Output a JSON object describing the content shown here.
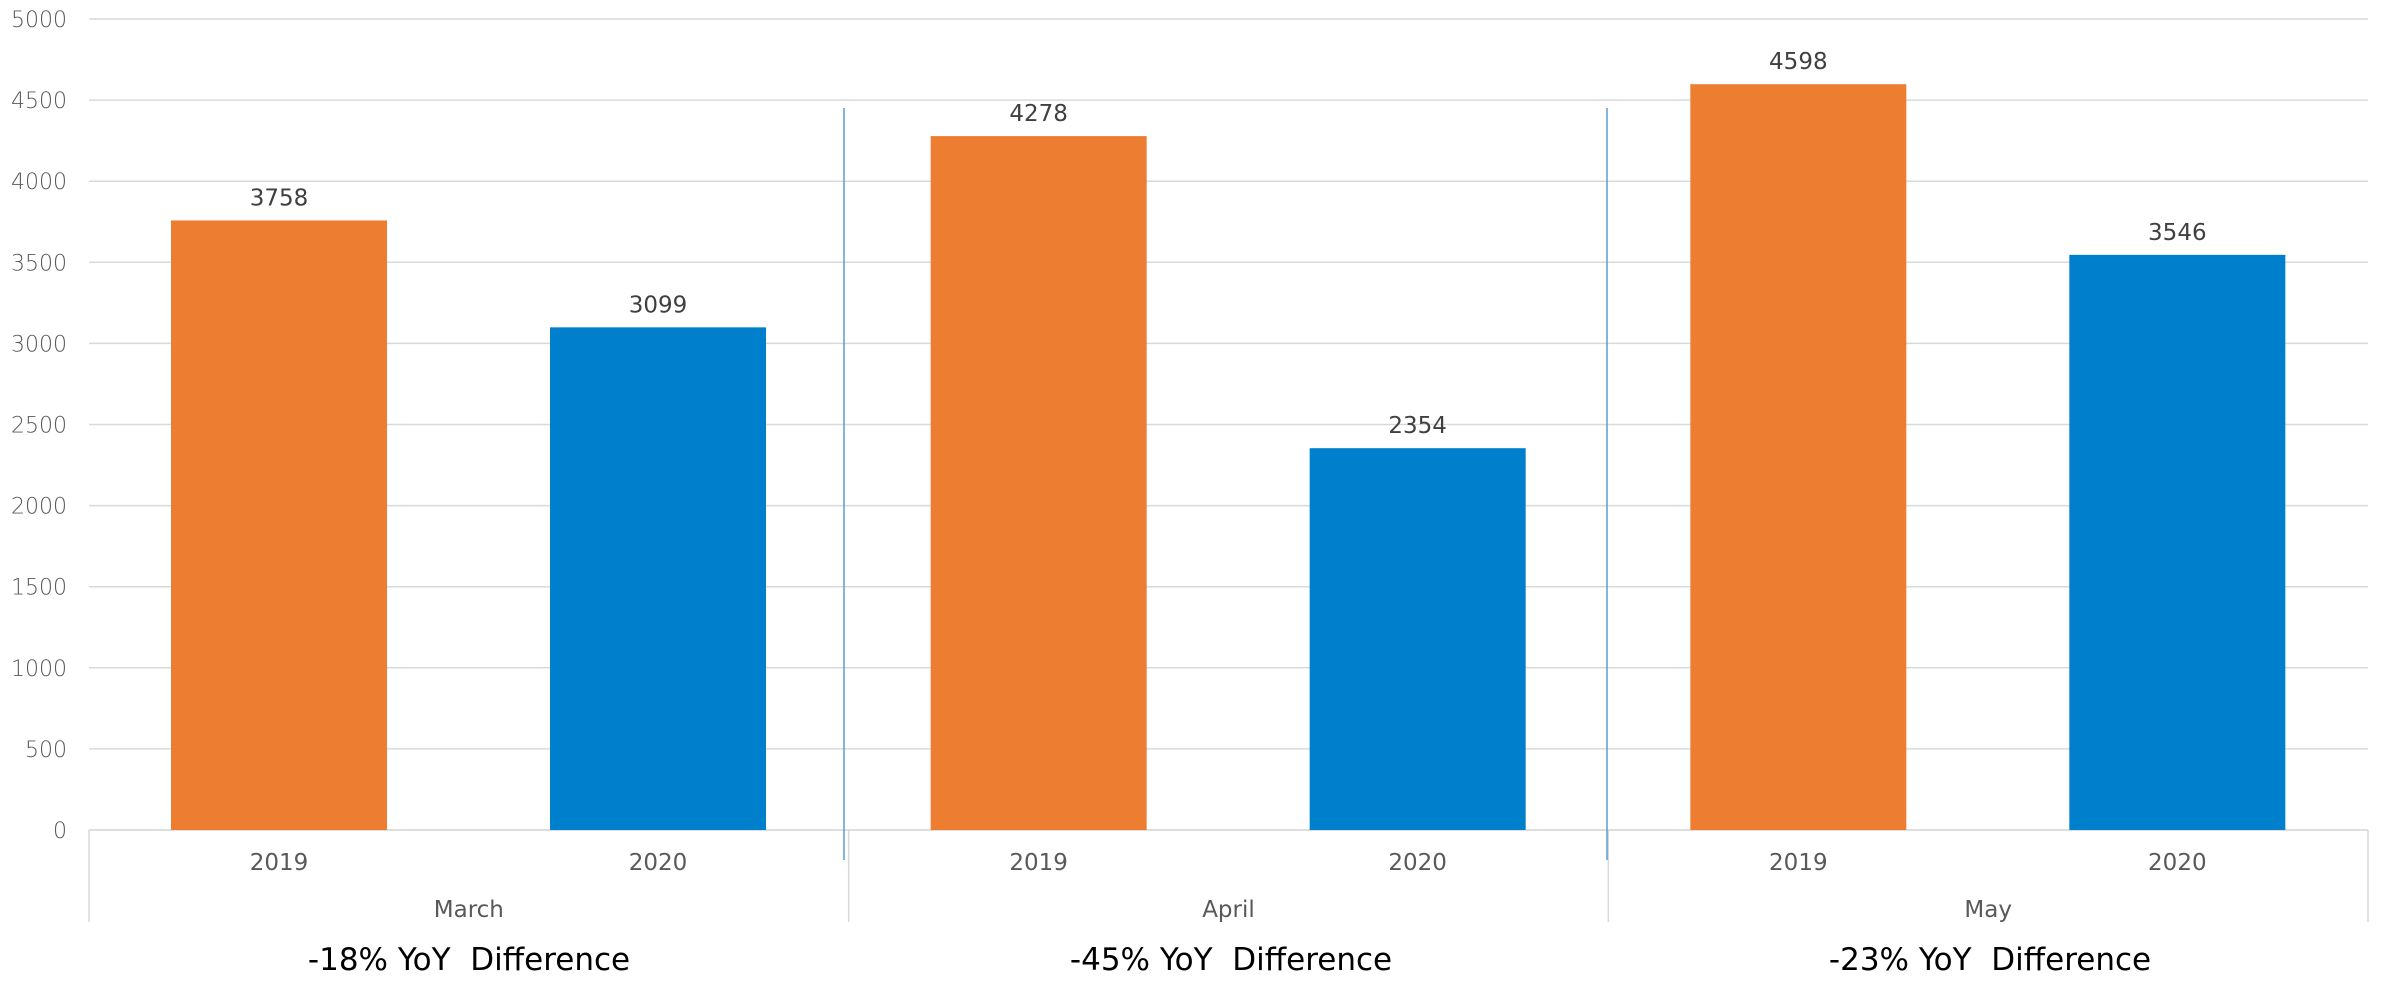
{
  "chart_data": {
    "type": "bar",
    "groups": [
      {
        "name": "March",
        "bars": [
          {
            "category": "2019",
            "value": 3758,
            "label": "3758"
          },
          {
            "category": "2020",
            "value": 3099,
            "label": "3099"
          }
        ]
      },
      {
        "name": "April",
        "bars": [
          {
            "category": "2019",
            "value": 4278,
            "label": "4278"
          },
          {
            "category": "2020",
            "value": 2354,
            "label": "2354"
          }
        ]
      },
      {
        "name": "May",
        "bars": [
          {
            "category": "2019",
            "value": 4598,
            "label": "4598"
          },
          {
            "category": "2020",
            "value": 3546,
            "label": "3546"
          }
        ]
      }
    ],
    "ylim": [
      0,
      5000
    ],
    "yticks": [
      "0",
      "500",
      "1000",
      "1500",
      "2000",
      "2500",
      "3000",
      "3500",
      "4000",
      "4500",
      "5000"
    ],
    "grid": true,
    "colors": {
      "2019": "#ED7D31",
      "2020": "#0080CC"
    },
    "title": "",
    "xlabel": "",
    "ylabel": ""
  },
  "annotations": [
    "-18% YoY  Difference",
    "-45% YoY  Difference",
    "-23% YoY  Difference"
  ]
}
